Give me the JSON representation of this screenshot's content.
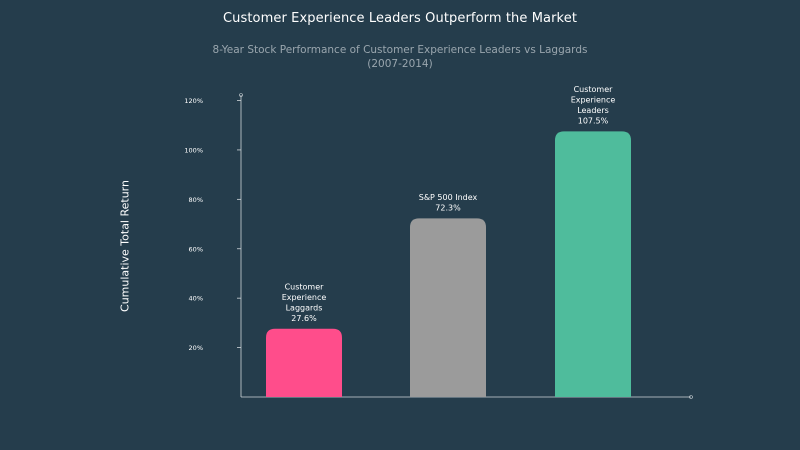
{
  "header": {
    "title": "Customer Experience Leaders Outperform the Market",
    "subtitle": "8-Year Stock Performance of Customer Experience Leaders vs Laggards (2007-2014)"
  },
  "chart_data": {
    "type": "bar",
    "title": "Customer Experience Leaders Outperform the Market",
    "subtitle": "8-Year Stock Performance of Customer Experience Leaders vs Laggards (2007-2014)",
    "xlabel": "",
    "ylabel": "Cumulative Total Return",
    "ylim": [
      0,
      120
    ],
    "yticks": [
      20,
      40,
      60,
      80,
      100,
      120
    ],
    "ytick_labels": [
      "20%",
      "40%",
      "60%",
      "80%",
      "100%",
      "120%"
    ],
    "grid": false,
    "categories": [
      [
        "Customer",
        "Experience",
        "Laggards"
      ],
      [
        "S&P 500 Index"
      ],
      [
        "Customer",
        "Experience",
        "Leaders"
      ]
    ],
    "values": [
      27.6,
      72.3,
      107.5
    ],
    "value_labels": [
      "27.6%",
      "72.3%",
      "107.5%"
    ],
    "colors": [
      "#ff4d8b",
      "#9b9b9b",
      "#4fbc9c"
    ]
  }
}
